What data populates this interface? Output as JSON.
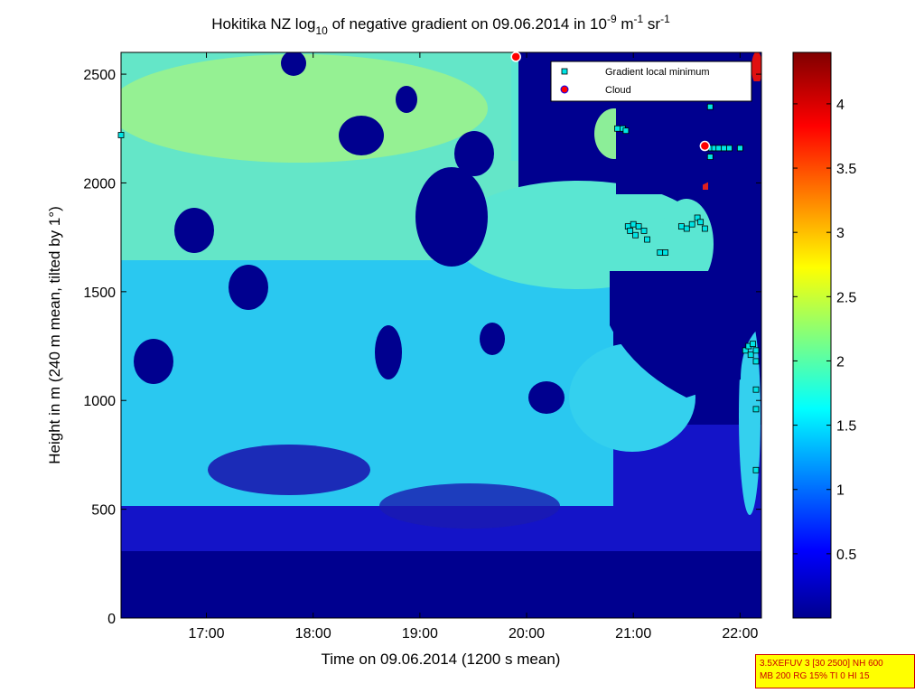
{
  "chart_data": {
    "type": "heatmap",
    "title": {
      "prefix": "Hokitika NZ log",
      "sub": "10",
      "middle": " of negative gradient on 09.06.2014 in 10",
      "sup1": "-9",
      "unit1": " m",
      "sup2": "-1",
      "unit2": " sr",
      "sup3": "-1"
    },
    "xlabel": "Time on 09.06.2014 (1200 s mean)",
    "ylabel": "Height in m (240 m mean, tilted by 1°)",
    "x_ticks": [
      "17:00",
      "18:00",
      "19:00",
      "20:00",
      "21:00",
      "22:00"
    ],
    "x_tick_hours": [
      17,
      18,
      19,
      20,
      21,
      22
    ],
    "xlim_hours": [
      16.2,
      22.2
    ],
    "y_ticks": [
      "0",
      "500",
      "1000",
      "1500",
      "2000",
      "2500"
    ],
    "y_tick_values": [
      0,
      500,
      1000,
      1500,
      2000,
      2500
    ],
    "ylim": [
      0,
      2600
    ],
    "colorbar": {
      "ticks": [
        "0.5",
        "1",
        "1.5",
        "2",
        "2.5",
        "3",
        "3.5",
        "4"
      ],
      "tick_values": [
        0.5,
        1,
        1.5,
        2,
        2.5,
        3,
        3.5,
        4
      ],
      "range": [
        0,
        4.4
      ],
      "colormap": "jet"
    },
    "legend": {
      "position": "top-right",
      "entries": [
        {
          "label": "Gradient local minimum",
          "marker": "square",
          "color": "#00e5e5"
        },
        {
          "label": "Cloud",
          "marker": "circle",
          "color": "#ff0000"
        }
      ]
    },
    "gradient_minima": [
      {
        "t": 16.2,
        "h": 2220
      },
      {
        "t": 20.85,
        "h": 2250
      },
      {
        "t": 20.9,
        "h": 2250
      },
      {
        "t": 20.93,
        "h": 2240
      },
      {
        "t": 20.95,
        "h": 1800
      },
      {
        "t": 20.97,
        "h": 1780
      },
      {
        "t": 21.0,
        "h": 1810
      },
      {
        "t": 21.02,
        "h": 1760
      },
      {
        "t": 21.05,
        "h": 1800
      },
      {
        "t": 21.1,
        "h": 1780
      },
      {
        "t": 21.13,
        "h": 1740
      },
      {
        "t": 21.25,
        "h": 1680
      },
      {
        "t": 21.3,
        "h": 1680
      },
      {
        "t": 21.45,
        "h": 1800
      },
      {
        "t": 21.5,
        "h": 1790
      },
      {
        "t": 21.55,
        "h": 1810
      },
      {
        "t": 21.6,
        "h": 1840
      },
      {
        "t": 21.63,
        "h": 1820
      },
      {
        "t": 21.67,
        "h": 1790
      },
      {
        "t": 21.7,
        "h": 2160
      },
      {
        "t": 21.73,
        "h": 2160
      },
      {
        "t": 21.76,
        "h": 2160
      },
      {
        "t": 21.8,
        "h": 2160
      },
      {
        "t": 21.85,
        "h": 2160
      },
      {
        "t": 21.9,
        "h": 2160
      },
      {
        "t": 22.0,
        "h": 2160
      },
      {
        "t": 21.72,
        "h": 2120
      },
      {
        "t": 21.72,
        "h": 2350
      },
      {
        "t": 22.05,
        "h": 1230
      },
      {
        "t": 22.08,
        "h": 1250
      },
      {
        "t": 22.1,
        "h": 1210
      },
      {
        "t": 22.12,
        "h": 1260
      },
      {
        "t": 22.15,
        "h": 1230
      },
      {
        "t": 22.18,
        "h": 1180
      },
      {
        "t": 22.19,
        "h": 1050
      },
      {
        "t": 22.19,
        "h": 960
      },
      {
        "t": 22.19,
        "h": 680
      }
    ],
    "clouds": [
      {
        "t": 19.9,
        "h": 2580
      },
      {
        "t": 21.67,
        "h": 2170
      }
    ]
  },
  "info_box": {
    "line1": "3.5XEFUV 3 [30 2500] NH 600",
    "line2": "MB 200 RG 15% TI 0 HI 15"
  }
}
